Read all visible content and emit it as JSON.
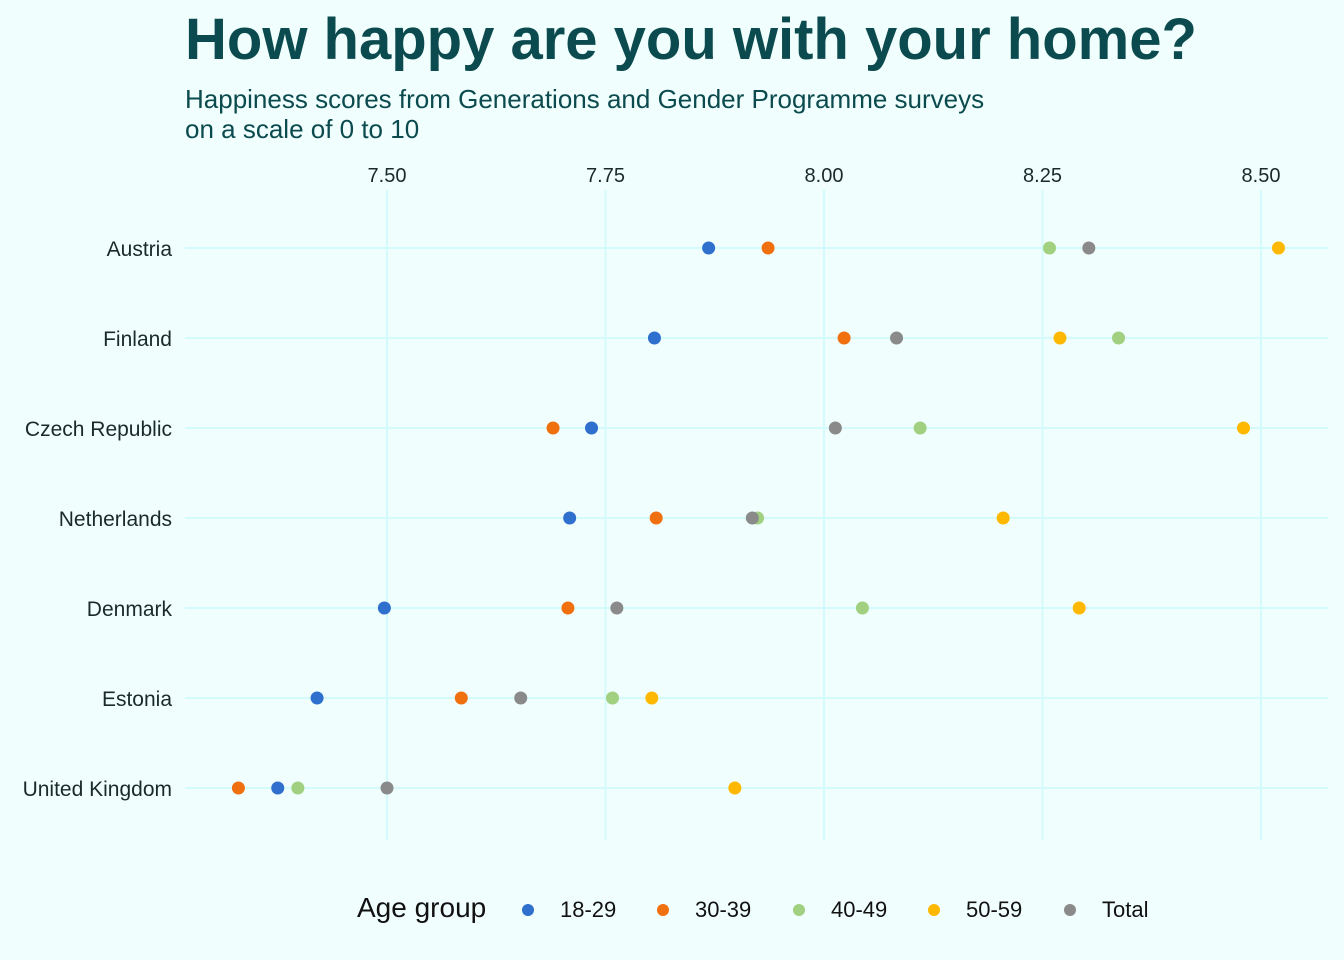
{
  "header": {
    "title": "How happy are you with your home?",
    "subtitle_line1": "Happiness scores from Generations and Gender Programme surveys",
    "subtitle_line2": "on a scale of 0 to 10"
  },
  "chart_data": {
    "type": "scatter",
    "title": "How happy are you with your home?",
    "subtitle": "Happiness scores from Generations and Gender Programme surveys on a scale of 0 to 10",
    "xlabel": "",
    "ylabel": "",
    "xlim": [
      7.27,
      8.58
    ],
    "x_ticks": [
      "7.50",
      "7.75",
      "8.00",
      "8.25",
      "8.50"
    ],
    "x_tick_values": [
      7.5,
      7.75,
      8.0,
      8.25,
      8.5
    ],
    "x_axis_position": "top",
    "grid": true,
    "categories": [
      "Austria",
      "Finland",
      "Czech Republic",
      "Netherlands",
      "Denmark",
      "Estonia",
      "United Kingdom"
    ],
    "legend_title": "Age group",
    "legend_position": "bottom",
    "series": [
      {
        "name": "18-29",
        "color": "#2f6fce",
        "values": [
          7.868,
          7.806,
          7.734,
          7.709,
          7.497,
          7.42,
          7.375
        ]
      },
      {
        "name": "30-39",
        "color": "#f07010",
        "values": [
          7.936,
          8.023,
          7.69,
          7.808,
          7.707,
          7.585,
          7.33
        ]
      },
      {
        "name": "40-49",
        "color": "#a0d080",
        "values": [
          8.258,
          8.337,
          8.11,
          7.924,
          8.044,
          7.758,
          7.398
        ]
      },
      {
        "name": "50-59",
        "color": "#ffb800",
        "values": [
          8.52,
          8.27,
          8.48,
          8.205,
          8.292,
          7.803,
          7.898
        ]
      },
      {
        "name": "Total",
        "color": "#8a8a8a",
        "values": [
          8.303,
          8.083,
          8.013,
          7.918,
          7.763,
          7.653,
          7.5
        ]
      }
    ]
  }
}
